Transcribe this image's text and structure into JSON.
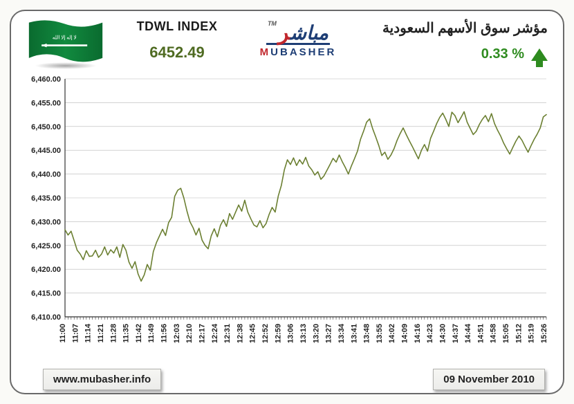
{
  "header": {
    "index_title": "TDWL INDEX",
    "index_value": "6452.49",
    "arabic_title": "مؤشر سوق الأسهم السعودية",
    "pct_change": "0.33 %",
    "change_direction": "up",
    "url_label": "www.mubasher.info",
    "date_label": "09 November 2010",
    "colors": {
      "index_value": "#4f6b22",
      "pct_up": "#2e8b1f",
      "logo_blue": "#1e3e75",
      "logo_red": "#c1272d",
      "flag_green": "#0a6b2f"
    }
  },
  "chart": {
    "type": "line",
    "background_color": "#ffffff",
    "gridline_color": "#b7b7b7",
    "axis_color": "#333333",
    "line_color": "#6b7f31",
    "line_width": 1.6,
    "tick_label_fontsize": 11,
    "ylim": [
      6410,
      6460
    ],
    "ytick_step": 5,
    "y_decimals": 2,
    "x_labels": [
      "11:00",
      "11:07",
      "11:14",
      "11:21",
      "11:28",
      "11:35",
      "11:42",
      "11:49",
      "11:56",
      "12:03",
      "12:10",
      "12:17",
      "12:24",
      "12:31",
      "12:38",
      "12:45",
      "12:52",
      "12:59",
      "13:06",
      "13:13",
      "13:20",
      "13:27",
      "13:34",
      "13:41",
      "13:48",
      "13:55",
      "14:02",
      "14:09",
      "14:16",
      "14:23",
      "14:30",
      "14:37",
      "14:44",
      "14:51",
      "14:58",
      "15:05",
      "15:12",
      "15:19",
      "15:26"
    ],
    "series": [
      6428.3,
      6427.2,
      6428.0,
      6426.0,
      6424.0,
      6423.2,
      6422.0,
      6423.9,
      6422.7,
      6422.8,
      6424.0,
      6422.5,
      6423.2,
      6424.7,
      6423.0,
      6424.1,
      6423.4,
      6424.7,
      6422.5,
      6425.2,
      6424.0,
      6421.5,
      6420.2,
      6421.6,
      6419.0,
      6417.5,
      6418.8,
      6421.0,
      6419.8,
      6423.7,
      6425.6,
      6427.0,
      6428.4,
      6427.1,
      6429.8,
      6430.9,
      6435.3,
      6436.6,
      6437.0,
      6435.0,
      6432.3,
      6430.0,
      6428.8,
      6427.2,
      6428.6,
      6426.1,
      6425.0,
      6424.3,
      6427.0,
      6428.5,
      6426.8,
      6429.2,
      6430.4,
      6429.0,
      6431.7,
      6430.5,
      6432.0,
      6433.5,
      6432.2,
      6434.5,
      6432.0,
      6430.6,
      6429.3,
      6428.9,
      6430.2,
      6428.7,
      6429.6,
      6431.5,
      6433.0,
      6432.0,
      6435.4,
      6437.6,
      6440.9,
      6443.0,
      6442.0,
      6443.4,
      6441.8,
      6443.0,
      6442.1,
      6443.5,
      6441.7,
      6440.9,
      6439.8,
      6440.5,
      6438.9,
      6439.6,
      6440.8,
      6442.0,
      6443.3,
      6442.5,
      6444.0,
      6442.6,
      6441.4,
      6440.0,
      6441.7,
      6443.2,
      6444.8,
      6447.3,
      6449.0,
      6450.9,
      6451.6,
      6449.5,
      6447.8,
      6446.0,
      6443.9,
      6444.6,
      6443.1,
      6444.0,
      6445.3,
      6447.1,
      6448.5,
      6449.7,
      6448.3,
      6447.0,
      6445.8,
      6444.5,
      6443.2,
      6445.0,
      6446.2,
      6444.8,
      6447.5,
      6449.0,
      6450.6,
      6451.9,
      6452.8,
      6451.5,
      6450.0,
      6453.0,
      6452.3,
      6450.8,
      6451.9,
      6453.1,
      6450.9,
      6449.6,
      6448.3,
      6449.0,
      6450.4,
      6451.5,
      6452.3,
      6451.0,
      6452.7,
      6450.6,
      6449.2,
      6448.0,
      6446.5,
      6445.3,
      6444.2,
      6445.6,
      6446.9,
      6448.0,
      6447.1,
      6445.8,
      6444.6,
      6446.0,
      6447.3,
      6448.4,
      6449.7,
      6452.0,
      6452.5
    ]
  }
}
